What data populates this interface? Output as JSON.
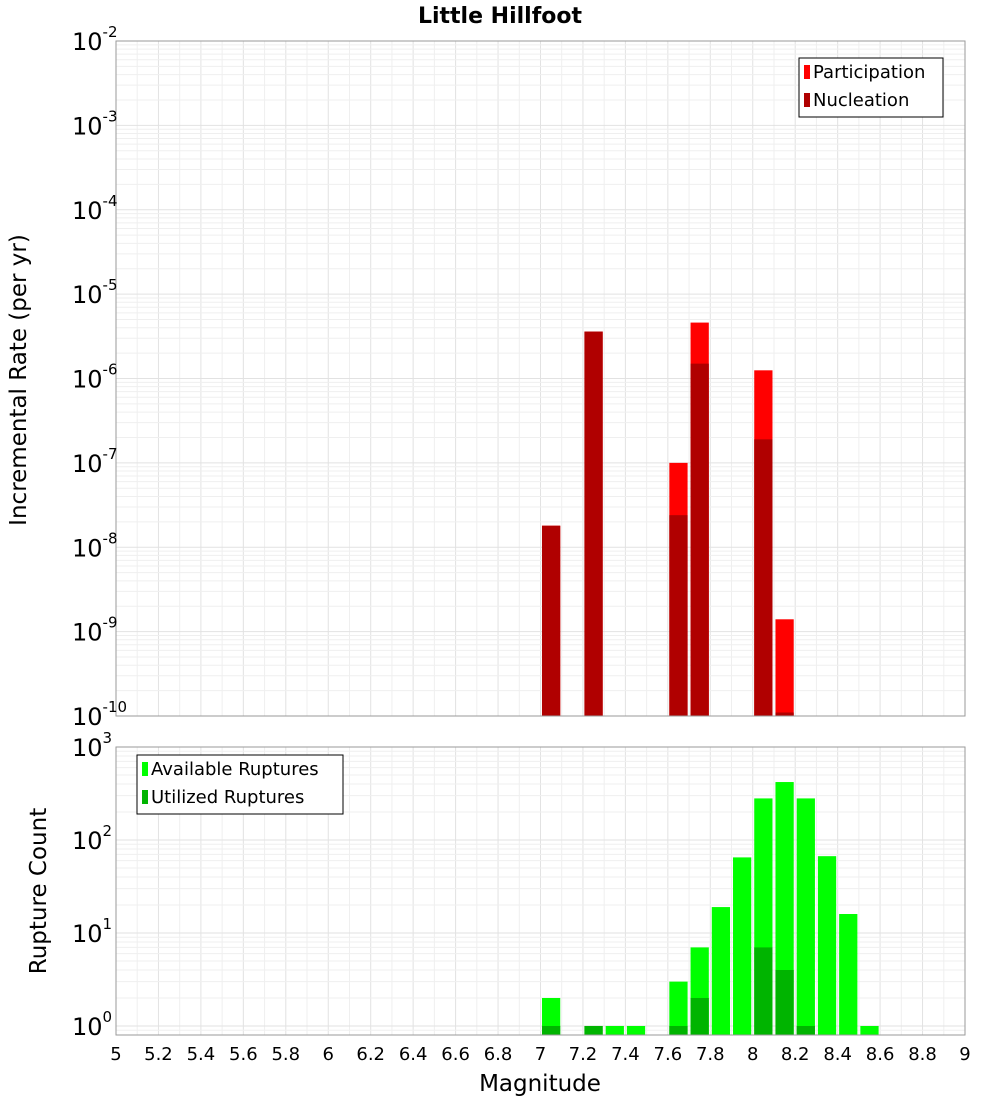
{
  "title": "Little Hillfoot",
  "xlabel": "Magnitude",
  "colors": {
    "participation": "#ff0000",
    "nucleation": "#b00000",
    "available": "#00ff00",
    "utilized": "#00b400"
  },
  "chart_data": [
    {
      "type": "bar",
      "panel": "top",
      "ylabel": "Incremental Rate (per yr)",
      "yscale": "log",
      "ylim": [
        1e-10,
        0.01
      ],
      "xlim": [
        5,
        9
      ],
      "legend": "top-right",
      "grid": true,
      "x_ticks": [
        "5",
        "5.2",
        "5.4",
        "5.6",
        "5.8",
        "6",
        "6.2",
        "6.4",
        "6.6",
        "6.8",
        "7",
        "7.2",
        "7.4",
        "7.6",
        "7.8",
        "8",
        "8.2",
        "8.4",
        "8.6",
        "8.8",
        "9"
      ],
      "y_ticks": [
        {
          "base": "10",
          "exp": "-2"
        },
        {
          "base": "10",
          "exp": "-3"
        },
        {
          "base": "10",
          "exp": "-4"
        },
        {
          "base": "10",
          "exp": "-5"
        },
        {
          "base": "10",
          "exp": "-6"
        },
        {
          "base": "10",
          "exp": "-7"
        },
        {
          "base": "10",
          "exp": "-8"
        },
        {
          "base": "10",
          "exp": "-9"
        },
        {
          "base": "10",
          "exp": "-10"
        }
      ],
      "series": [
        {
          "name": "Participation",
          "x": [
            7.05,
            7.25,
            7.65,
            7.75,
            8.05,
            8.15
          ],
          "values": [
            1.8e-08,
            3.6e-06,
            1e-07,
            4.6e-06,
            1.25e-06,
            1.4e-09
          ]
        },
        {
          "name": "Nucleation",
          "x": [
            7.05,
            7.25,
            7.65,
            7.75,
            8.05,
            8.15
          ],
          "values": [
            1.8e-08,
            3.6e-06,
            2.4e-08,
            1.5e-06,
            1.9e-07,
            1.1e-10
          ]
        }
      ]
    },
    {
      "type": "bar",
      "panel": "bottom",
      "ylabel": "Rupture Count",
      "yscale": "log",
      "ylim": [
        0.8,
        1000
      ],
      "xlim": [
        5,
        9
      ],
      "legend": "top-left",
      "grid": true,
      "y_ticks": [
        {
          "base": "10",
          "exp": "3"
        },
        {
          "base": "10",
          "exp": "2"
        },
        {
          "base": "10",
          "exp": "1"
        },
        {
          "base": "10",
          "exp": "0"
        }
      ],
      "series": [
        {
          "name": "Available Ruptures",
          "x": [
            7.05,
            7.25,
            7.35,
            7.45,
            7.65,
            7.75,
            7.85,
            7.95,
            8.05,
            8.15,
            8.25,
            8.35,
            8.45,
            8.55
          ],
          "values": [
            2,
            1,
            1,
            1,
            3,
            7,
            19,
            65,
            280,
            420,
            280,
            67,
            16,
            1
          ]
        },
        {
          "name": "Utilized Ruptures",
          "x": [
            7.05,
            7.25,
            7.65,
            7.75,
            8.05,
            8.15,
            8.25
          ],
          "values": [
            1,
            1,
            1,
            2,
            7,
            4,
            1
          ]
        }
      ]
    }
  ]
}
